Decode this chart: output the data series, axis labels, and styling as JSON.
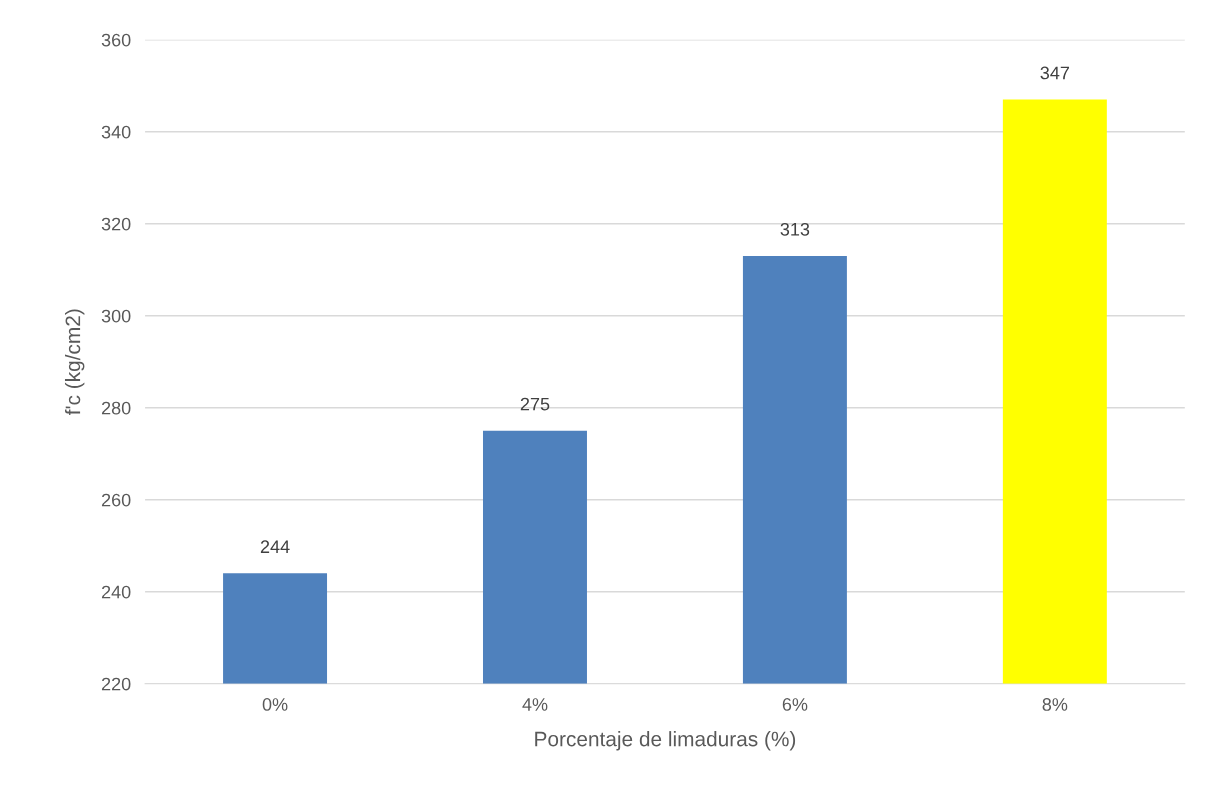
{
  "chart_data": {
    "type": "bar",
    "xlabel": "Porcentaje de limaduras (%)",
    "ylabel": "f'c (kg/cm2)",
    "categories": [
      "0%",
      "4%",
      "6%",
      "8%"
    ],
    "values": [
      244,
      275,
      313,
      347
    ],
    "colors": [
      "#4f81bd",
      "#4f81bd",
      "#4f81bd",
      "#ffff00"
    ],
    "data_labels": true,
    "ylim": [
      220,
      360
    ],
    "yticks": [
      220,
      240,
      260,
      280,
      300,
      320,
      340,
      360
    ],
    "grid": "y"
  }
}
